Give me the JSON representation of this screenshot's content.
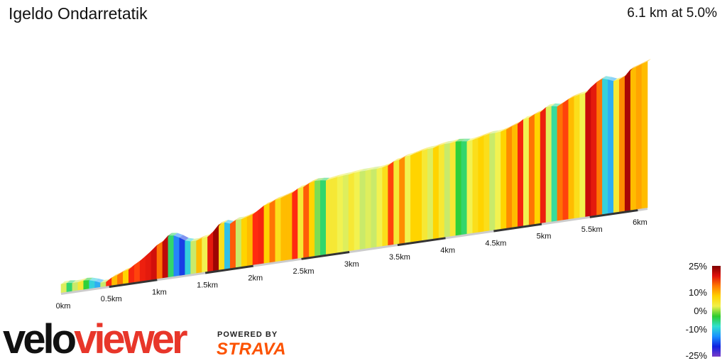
{
  "header": {
    "title": "Igeldo Ondarretatik",
    "summary": "6.1 km at 5.0%"
  },
  "chart_data": {
    "type": "area",
    "title": "Igeldo Ondarretatik",
    "subtitle": "6.1 km at 5.0%",
    "xlabel": "",
    "ylabel": "",
    "x_unit": "km",
    "xlim": [
      0,
      6.1
    ],
    "x_ticks": [
      "0km",
      "0.5km",
      "1km",
      "1.5km",
      "2km",
      "2.5km",
      "3km",
      "3.5km",
      "4km",
      "4.5km",
      "5km",
      "5.5km",
      "6km"
    ],
    "x_tick_values": [
      0,
      0.5,
      1,
      1.5,
      2,
      2.5,
      3,
      3.5,
      4,
      4.5,
      5,
      5.5,
      6
    ],
    "gradient_scale": {
      "labels": [
        "25%",
        "10%",
        "0%",
        "-10%",
        "-25%"
      ],
      "values": [
        25,
        10,
        0,
        -10,
        -25
      ],
      "colors": [
        "#7f0000",
        "#e0120c",
        "#ff7a00",
        "#ffd200",
        "#f0f04a",
        "#2ecc2e",
        "#30e0d0",
        "#1a90ff",
        "#1020e0",
        "#7a3cc8"
      ]
    },
    "segments_gradient_pct": [
      1,
      -3,
      0,
      3,
      -2,
      -6,
      -8,
      0,
      12,
      6,
      9,
      5,
      13,
      11,
      14,
      15,
      17,
      9,
      19,
      -3,
      -10,
      -13,
      -6,
      0,
      6,
      2,
      15,
      22,
      4,
      -7,
      10,
      0,
      5,
      6,
      12,
      13,
      5,
      9,
      4,
      6,
      6,
      12,
      3,
      10,
      5,
      -1,
      -3,
      3,
      3,
      2,
      1,
      3,
      2,
      0,
      1,
      0,
      2,
      4,
      11,
      3,
      8,
      2,
      5,
      5,
      3,
      1,
      5,
      3,
      0,
      3,
      -2,
      -3,
      2,
      4,
      5,
      4,
      0,
      2,
      5,
      8,
      6,
      13,
      2,
      9,
      5,
      14,
      1,
      -4,
      9,
      11,
      6,
      4,
      2,
      18,
      15,
      9,
      -6,
      -8,
      3,
      8,
      21,
      6,
      7,
      6
    ],
    "grid": false,
    "legend": "right"
  },
  "branding": {
    "velo": "velo",
    "viewer": "viewer",
    "powered_by": "POWERED BY",
    "strava": "STRAVA"
  }
}
